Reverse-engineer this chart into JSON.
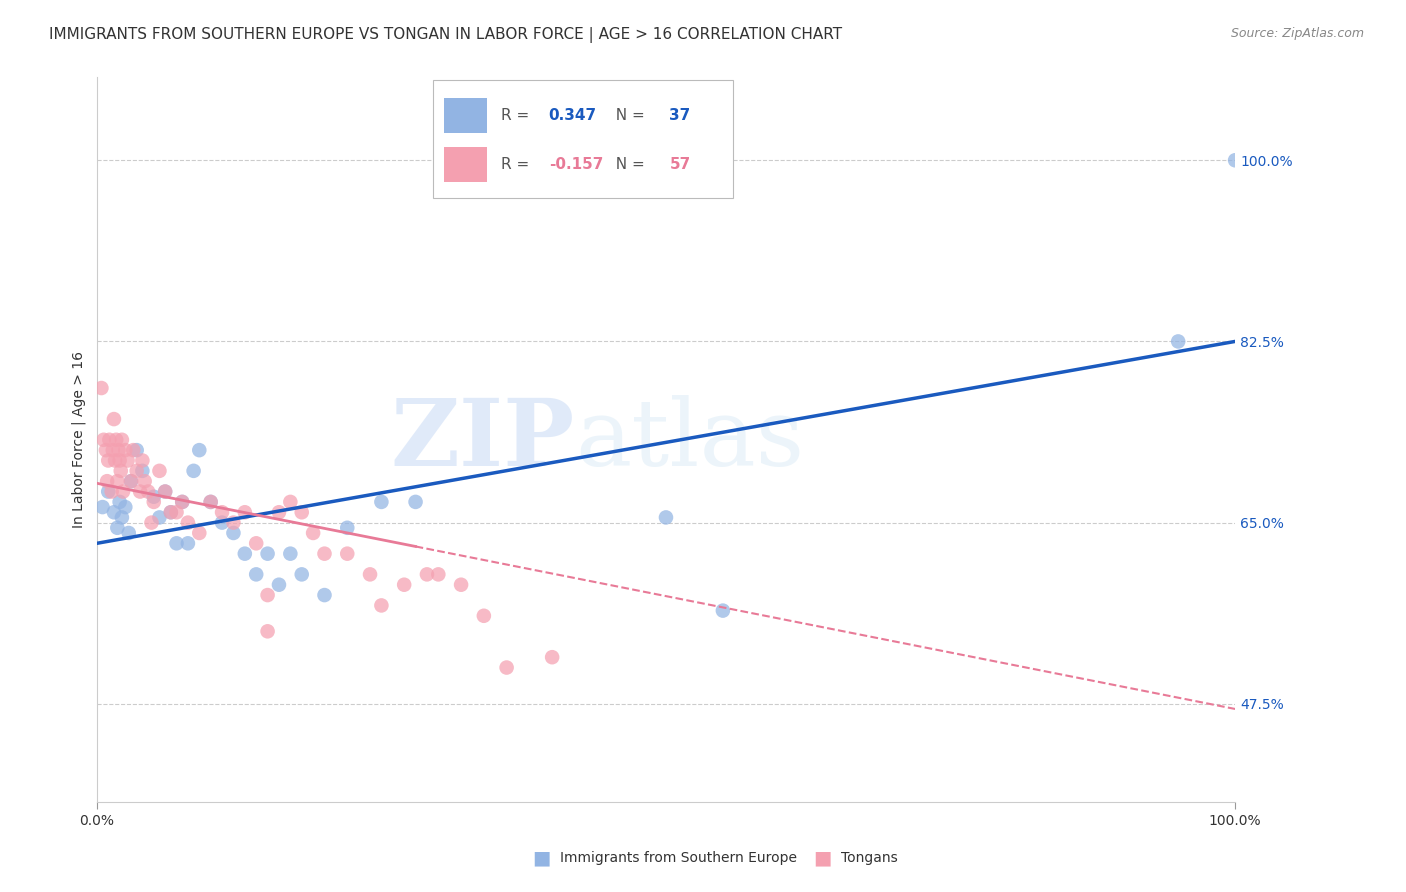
{
  "title": "IMMIGRANTS FROM SOUTHERN EUROPE VS TONGAN IN LABOR FORCE | AGE > 16 CORRELATION CHART",
  "source": "Source: ZipAtlas.com",
  "ylabel": "In Labor Force | Age > 16",
  "xlim": [
    0.0,
    1.0
  ],
  "ylim": [
    0.38,
    1.08
  ],
  "yticks": [
    0.475,
    0.65,
    0.825,
    1.0
  ],
  "ytick_labels": [
    "47.5%",
    "65.0%",
    "82.5%",
    "100.0%"
  ],
  "xtick_labels": [
    "0.0%",
    "100.0%"
  ],
  "xticks": [
    0.0,
    1.0
  ],
  "legend_labels": [
    "Immigrants from Southern Europe",
    "Tongans"
  ],
  "R_blue": 0.347,
  "N_blue": 37,
  "R_pink": -0.157,
  "N_pink": 57,
  "blue_color": "#92b4e3",
  "pink_color": "#f4a0b0",
  "blue_line_color": "#1a5abf",
  "pink_line_color": "#e87a97",
  "watermark_zip": "ZIP",
  "watermark_atlas": "atlas",
  "grid_color": "#cccccc",
  "background_color": "#ffffff",
  "title_fontsize": 11,
  "axis_label_fontsize": 10,
  "tick_fontsize": 10,
  "blue_scatter_x": [
    0.005,
    0.01,
    0.015,
    0.018,
    0.02,
    0.022,
    0.025,
    0.028,
    0.03,
    0.035,
    0.04,
    0.05,
    0.055,
    0.06,
    0.065,
    0.07,
    0.075,
    0.08,
    0.085,
    0.09,
    0.1,
    0.11,
    0.12,
    0.13,
    0.14,
    0.15,
    0.16,
    0.17,
    0.18,
    0.2,
    0.22,
    0.25,
    0.28,
    0.5,
    0.55,
    0.95,
    1.0
  ],
  "blue_scatter_y": [
    0.665,
    0.68,
    0.66,
    0.645,
    0.67,
    0.655,
    0.665,
    0.64,
    0.69,
    0.72,
    0.7,
    0.675,
    0.655,
    0.68,
    0.66,
    0.63,
    0.67,
    0.63,
    0.7,
    0.72,
    0.67,
    0.65,
    0.64,
    0.62,
    0.6,
    0.62,
    0.59,
    0.62,
    0.6,
    0.58,
    0.645,
    0.67,
    0.67,
    0.655,
    0.565,
    0.825,
    1.0
  ],
  "pink_scatter_x": [
    0.004,
    0.006,
    0.008,
    0.009,
    0.01,
    0.011,
    0.013,
    0.014,
    0.015,
    0.016,
    0.017,
    0.018,
    0.019,
    0.02,
    0.021,
    0.022,
    0.023,
    0.025,
    0.027,
    0.03,
    0.032,
    0.035,
    0.038,
    0.04,
    0.042,
    0.045,
    0.048,
    0.05,
    0.055,
    0.06,
    0.065,
    0.07,
    0.075,
    0.08,
    0.09,
    0.1,
    0.11,
    0.12,
    0.13,
    0.14,
    0.15,
    0.16,
    0.17,
    0.18,
    0.19,
    0.2,
    0.22,
    0.24,
    0.25,
    0.27,
    0.29,
    0.3,
    0.32,
    0.34,
    0.36,
    0.4,
    0.15
  ],
  "pink_scatter_y": [
    0.78,
    0.73,
    0.72,
    0.69,
    0.71,
    0.73,
    0.68,
    0.72,
    0.75,
    0.71,
    0.73,
    0.69,
    0.72,
    0.71,
    0.7,
    0.73,
    0.68,
    0.72,
    0.71,
    0.69,
    0.72,
    0.7,
    0.68,
    0.71,
    0.69,
    0.68,
    0.65,
    0.67,
    0.7,
    0.68,
    0.66,
    0.66,
    0.67,
    0.65,
    0.64,
    0.67,
    0.66,
    0.65,
    0.66,
    0.63,
    0.58,
    0.66,
    0.67,
    0.66,
    0.64,
    0.62,
    0.62,
    0.6,
    0.57,
    0.59,
    0.6,
    0.6,
    0.59,
    0.56,
    0.51,
    0.52,
    0.545
  ],
  "blue_line_x0": 0.0,
  "blue_line_x1": 1.0,
  "blue_line_y0": 0.63,
  "blue_line_y1": 0.825,
  "pink_line_x0": 0.0,
  "pink_line_x1": 1.0,
  "pink_line_y0": 0.688,
  "pink_line_y1": 0.47
}
